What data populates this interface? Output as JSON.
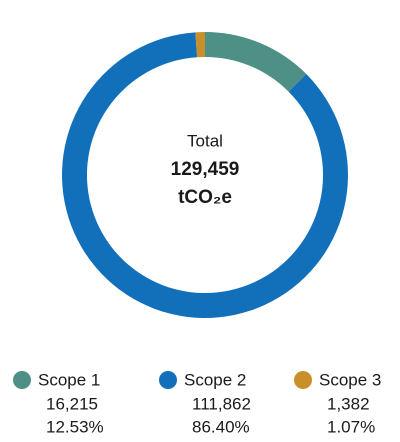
{
  "chart_data": {
    "type": "donut",
    "center_label": "Total",
    "total": "129,459",
    "unit": "tCO₂e",
    "categories": [
      "Scope 1",
      "Scope 2",
      "Scope 3"
    ],
    "values": [
      16215,
      111862,
      1382
    ],
    "value_labels": [
      "16,215",
      "111,862",
      "1,382"
    ],
    "percent_labels": [
      "12.53%",
      "86.40%",
      "1.07%"
    ],
    "colors": [
      "#4e8f86",
      "#1270bb",
      "#c98f2a"
    ]
  }
}
